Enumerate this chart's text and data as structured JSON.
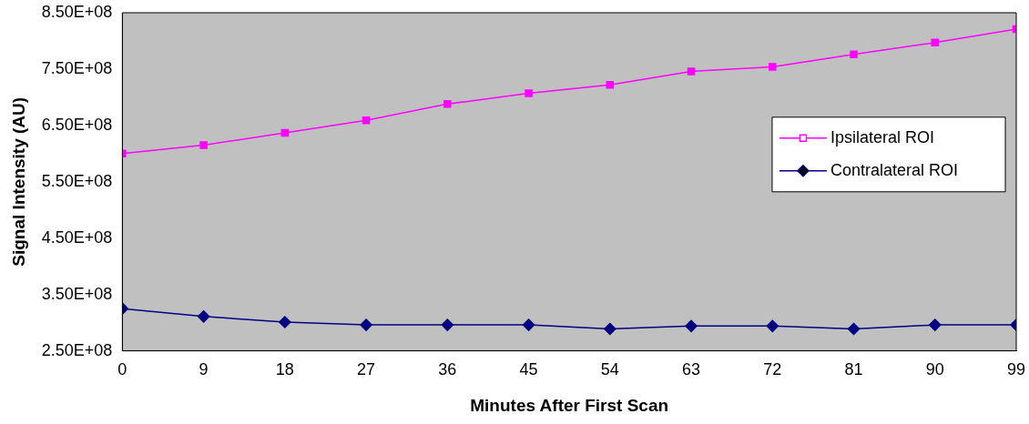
{
  "chart_data": {
    "type": "line",
    "xlabel": "Minutes After First Scan",
    "ylabel": "Signal Intensity (AU)",
    "x": [
      0,
      9,
      18,
      27,
      36,
      45,
      54,
      63,
      72,
      81,
      90,
      99
    ],
    "xlim": [
      0,
      99
    ],
    "xticks": [
      0,
      9,
      18,
      27,
      36,
      45,
      54,
      63,
      72,
      81,
      90,
      99
    ],
    "ylim": [
      250000000,
      850000000
    ],
    "yticks": [
      {
        "value": 250000000,
        "label": "2.50E+08"
      },
      {
        "value": 350000000,
        "label": "3.50E+08"
      },
      {
        "value": 450000000,
        "label": "4.50E+08"
      },
      {
        "value": 550000000,
        "label": "5.50E+08"
      },
      {
        "value": 650000000,
        "label": "6.50E+08"
      },
      {
        "value": 750000000,
        "label": "7.50E+08"
      },
      {
        "value": 850000000,
        "label": "8.50E+08"
      }
    ],
    "grid": false,
    "legend": "right",
    "series": [
      {
        "name": "Ipsilateral ROI",
        "color": "#ff00ff",
        "marker": "square",
        "values": [
          600000000,
          615000000,
          637000000,
          659000000,
          688000000,
          707000000,
          722000000,
          746000000,
          754000000,
          776000000,
          797000000,
          821000000
        ]
      },
      {
        "name": "Contralateral ROI",
        "color": "#000080",
        "marker": "diamond",
        "values": [
          325000000,
          311000000,
          301000000,
          296000000,
          296000000,
          296000000,
          289000000,
          294000000,
          294000000,
          289000000,
          296000000,
          296000000
        ]
      }
    ]
  }
}
